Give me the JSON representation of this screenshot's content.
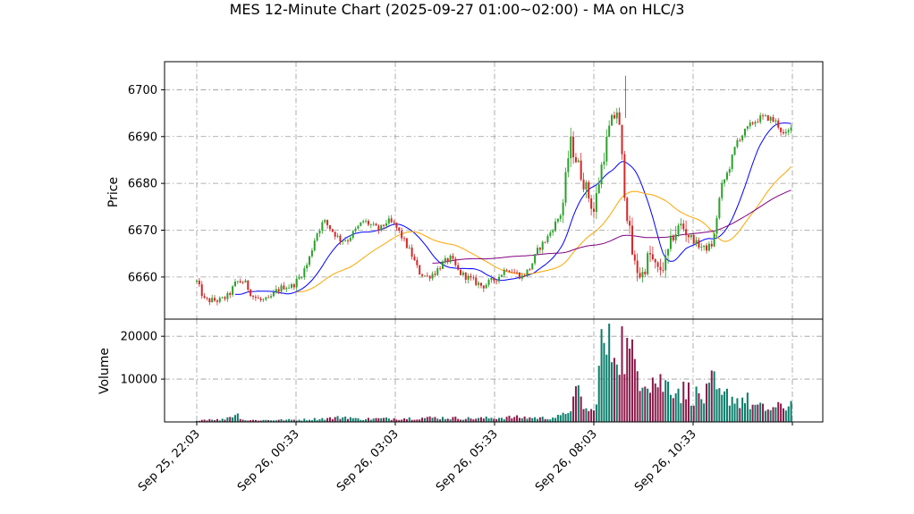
{
  "chart_data": {
    "type": "candlestick",
    "title": "MES 12-Minute Chart (2025-09-27 01:00~02:00) - MA on HLC/3",
    "price_panel": {
      "ylabel": "Price",
      "ylim": [
        6651,
        6706
      ],
      "yticks": [
        6660,
        6670,
        6680,
        6690,
        6700
      ],
      "grid": true
    },
    "volume_panel": {
      "ylabel": "Volume",
      "ylim": [
        0,
        24000
      ],
      "yticks": [
        10000,
        20000
      ],
      "grid": true
    },
    "x_axis": {
      "tick_labels": [
        "Sep 25, 22:03",
        "Sep 26, 00:33",
        "Sep 26, 03:03",
        "Sep 26, 05:33",
        "Sep 26, 08:03",
        "Sep 26, 10:33"
      ],
      "tick_indices": [
        0,
        12.5,
        25,
        37.5,
        50,
        62.5
      ],
      "label_rotation": 45
    },
    "price_knots": [
      [
        0,
        6659
      ],
      [
        1,
        6655
      ],
      [
        3,
        6655
      ],
      [
        4,
        6656
      ],
      [
        5,
        6659
      ],
      [
        6,
        6659
      ],
      [
        7,
        6656
      ],
      [
        8,
        6655
      ],
      [
        9,
        6655
      ],
      [
        10,
        6657
      ],
      [
        11,
        6658
      ],
      [
        12,
        6658
      ],
      [
        13,
        6660
      ],
      [
        14,
        6663
      ],
      [
        15,
        6669
      ],
      [
        16,
        6672
      ],
      [
        17,
        6670
      ],
      [
        18,
        6668
      ],
      [
        19,
        6668
      ],
      [
        20,
        6670
      ],
      [
        21,
        6672
      ],
      [
        22,
        6671
      ],
      [
        23,
        6670
      ],
      [
        24,
        6672
      ],
      [
        25,
        6671
      ],
      [
        26,
        6668
      ],
      [
        27,
        6665
      ],
      [
        28,
        6661
      ],
      [
        29,
        6660
      ],
      [
        30,
        6661
      ],
      [
        31,
        6663
      ],
      [
        32,
        6664
      ],
      [
        33,
        6661
      ],
      [
        34,
        6660
      ],
      [
        35,
        6659
      ],
      [
        36,
        6658
      ],
      [
        37,
        6659
      ],
      [
        38,
        6660
      ],
      [
        39,
        6662
      ],
      [
        40,
        6661
      ],
      [
        41,
        6660
      ],
      [
        42,
        6662
      ],
      [
        43,
        6666
      ],
      [
        44,
        6668
      ],
      [
        45,
        6671
      ],
      [
        46,
        6674
      ],
      [
        47,
        6689
      ],
      [
        48,
        6684
      ],
      [
        49,
        6679
      ],
      [
        50,
        6674
      ],
      [
        51,
        6684
      ],
      [
        52,
        6692
      ],
      [
        53,
        6696
      ],
      [
        54,
        6676
      ],
      [
        55,
        6663
      ],
      [
        56,
        6660
      ],
      [
        57,
        6665
      ],
      [
        58,
        6661
      ],
      [
        59,
        6663
      ],
      [
        60,
        6669
      ],
      [
        61,
        6671
      ],
      [
        62,
        6669
      ],
      [
        63,
        6667
      ],
      [
        64,
        6666
      ],
      [
        65,
        6667
      ],
      [
        66,
        6679
      ],
      [
        67,
        6683
      ],
      [
        68,
        6689
      ],
      [
        69,
        6691
      ],
      [
        70,
        6693
      ],
      [
        71,
        6694
      ],
      [
        72,
        6694
      ],
      [
        73,
        6693
      ],
      [
        74,
        6690
      ],
      [
        75,
        6692
      ]
    ],
    "volume_knots": [
      [
        0,
        400
      ],
      [
        2,
        700
      ],
      [
        3,
        400
      ],
      [
        5,
        1900
      ],
      [
        6,
        400
      ],
      [
        13,
        500
      ],
      [
        17,
        900
      ],
      [
        19,
        1200
      ],
      [
        20,
        700
      ],
      [
        25,
        800
      ],
      [
        30,
        1000
      ],
      [
        35,
        800
      ],
      [
        40,
        1100
      ],
      [
        44,
        900
      ],
      [
        46,
        1300
      ],
      [
        47,
        3300
      ],
      [
        48,
        6800
      ],
      [
        49,
        2800
      ],
      [
        50,
        2300
      ],
      [
        51,
        17500
      ],
      [
        52,
        16500
      ],
      [
        53,
        19500
      ],
      [
        54,
        16500
      ],
      [
        55,
        13500
      ],
      [
        56,
        12500
      ],
      [
        57,
        10500
      ],
      [
        58,
        9500
      ],
      [
        59,
        8500
      ],
      [
        60,
        9000
      ],
      [
        61,
        7000
      ],
      [
        62,
        7000
      ],
      [
        63,
        6000
      ],
      [
        64,
        5500
      ],
      [
        65,
        9000
      ],
      [
        66,
        5000
      ],
      [
        67,
        6500
      ],
      [
        68,
        5000
      ],
      [
        69,
        5500
      ],
      [
        70,
        3800
      ],
      [
        71,
        3200
      ],
      [
        72,
        3000
      ],
      [
        73,
        3200
      ],
      [
        74,
        3500
      ],
      [
        75,
        4500
      ]
    ],
    "series": [
      {
        "name": "",
        "kind": "moving_average",
        "color": "#0000ff",
        "period": 5
      },
      {
        "name": "",
        "kind": "moving_average",
        "color": "#ffa500",
        "period": 13
      },
      {
        "name": "",
        "kind": "moving_average",
        "color": "#800080",
        "period": 30
      }
    ],
    "candles_per_index": 3.1,
    "up_color": "#2ca02c",
    "down_color": "#d62728",
    "volume_up_color": "#0a7d6b",
    "volume_down_color": "#8b1a4a"
  }
}
